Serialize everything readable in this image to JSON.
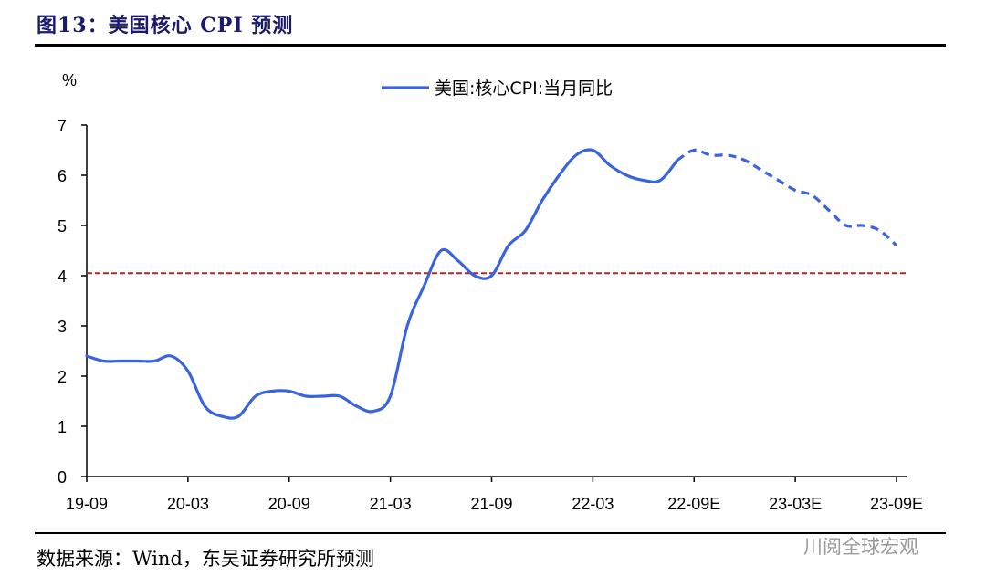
{
  "title": "图13：美国核心 CPI 预测",
  "source": "数据来源：Wind，东吴证券研究所预测",
  "watermark": "川阅全球宏观",
  "chart_data": {
    "type": "line",
    "ylabel": "%",
    "ylim": [
      0,
      7
    ],
    "yticks": [
      0,
      1,
      2,
      3,
      4,
      5,
      6,
      7
    ],
    "x_tick_labels": [
      "19-09",
      "20-03",
      "20-09",
      "21-03",
      "21-09",
      "22-03",
      "22-09E",
      "23-03E",
      "23-09E"
    ],
    "grid": false,
    "legend_position": "top",
    "x": [
      "2019-09",
      "2019-10",
      "2019-11",
      "2019-12",
      "2020-01",
      "2020-02",
      "2020-03",
      "2020-04",
      "2020-05",
      "2020-06",
      "2020-07",
      "2020-08",
      "2020-09",
      "2020-10",
      "2020-11",
      "2020-12",
      "2021-01",
      "2021-02",
      "2021-03",
      "2021-04",
      "2021-05",
      "2021-06",
      "2021-07",
      "2021-08",
      "2021-09",
      "2021-10",
      "2021-11",
      "2021-12",
      "2022-01",
      "2022-02",
      "2022-03",
      "2022-04",
      "2022-05",
      "2022-06",
      "2022-07",
      "2022-08",
      "2022-09",
      "2022-10",
      "2022-11",
      "2022-12",
      "2023-01",
      "2023-02",
      "2023-03",
      "2023-04",
      "2023-05",
      "2023-06",
      "2023-07",
      "2023-08",
      "2023-09"
    ],
    "series": [
      {
        "name": "美国:核心CPI:当月同比",
        "color": "#3a63e0",
        "actual_values": [
          2.4,
          2.3,
          2.3,
          2.3,
          2.3,
          2.4,
          2.1,
          1.4,
          1.2,
          1.2,
          1.6,
          1.7,
          1.7,
          1.6,
          1.6,
          1.6,
          1.4,
          1.3,
          1.6,
          3.0,
          3.8,
          4.5,
          4.3,
          4.0,
          4.0,
          4.6,
          4.9,
          5.5,
          6.0,
          6.4,
          6.5,
          6.2,
          6.0,
          5.9,
          5.9,
          6.3
        ],
        "forecast_values": [
          null,
          null,
          null,
          null,
          null,
          null,
          null,
          null,
          null,
          null,
          null,
          null,
          null,
          null,
          null,
          null,
          null,
          null,
          null,
          null,
          null,
          null,
          null,
          null,
          null,
          null,
          null,
          null,
          null,
          null,
          null,
          null,
          null,
          null,
          null,
          6.3,
          6.5,
          6.4,
          6.4,
          6.3,
          6.1,
          5.9,
          5.7,
          5.6,
          5.3,
          5.0,
          5.0,
          4.9,
          4.6
        ]
      }
    ],
    "reference_line": {
      "y": 4.05,
      "color": "#a52a2a",
      "style": "dashed"
    }
  }
}
